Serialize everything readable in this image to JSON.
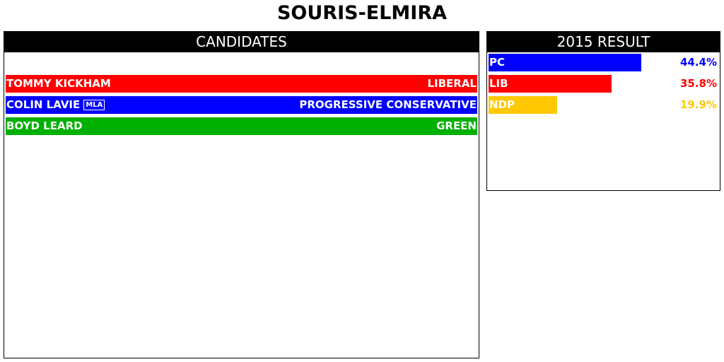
{
  "title": "SOURIS-ELMIRA",
  "candidates_panel": {
    "header": "CANDIDATES",
    "rows": [
      {
        "name": "TOMMY KICKHAM",
        "badge": "",
        "party": "LIBERAL",
        "color": "#ff0000"
      },
      {
        "name": "COLIN LAVIE",
        "badge": "MLA",
        "party": "PROGRESSIVE CONSERVATIVE",
        "color": "#0000ff"
      },
      {
        "name": "BOYD LEARD",
        "badge": "",
        "party": "GREEN",
        "color": "#00b000"
      }
    ]
  },
  "result_panel": {
    "header": "2015 RESULT",
    "rows": [
      {
        "party": "PC",
        "value": 44.4,
        "label": "44.4%",
        "color": "#0000ff"
      },
      {
        "party": "LIB",
        "value": 35.8,
        "label": "35.8%",
        "color": "#ff0000"
      },
      {
        "party": "NDP",
        "value": 19.9,
        "label": "19.9%",
        "color": "#ffc800"
      }
    ]
  }
}
